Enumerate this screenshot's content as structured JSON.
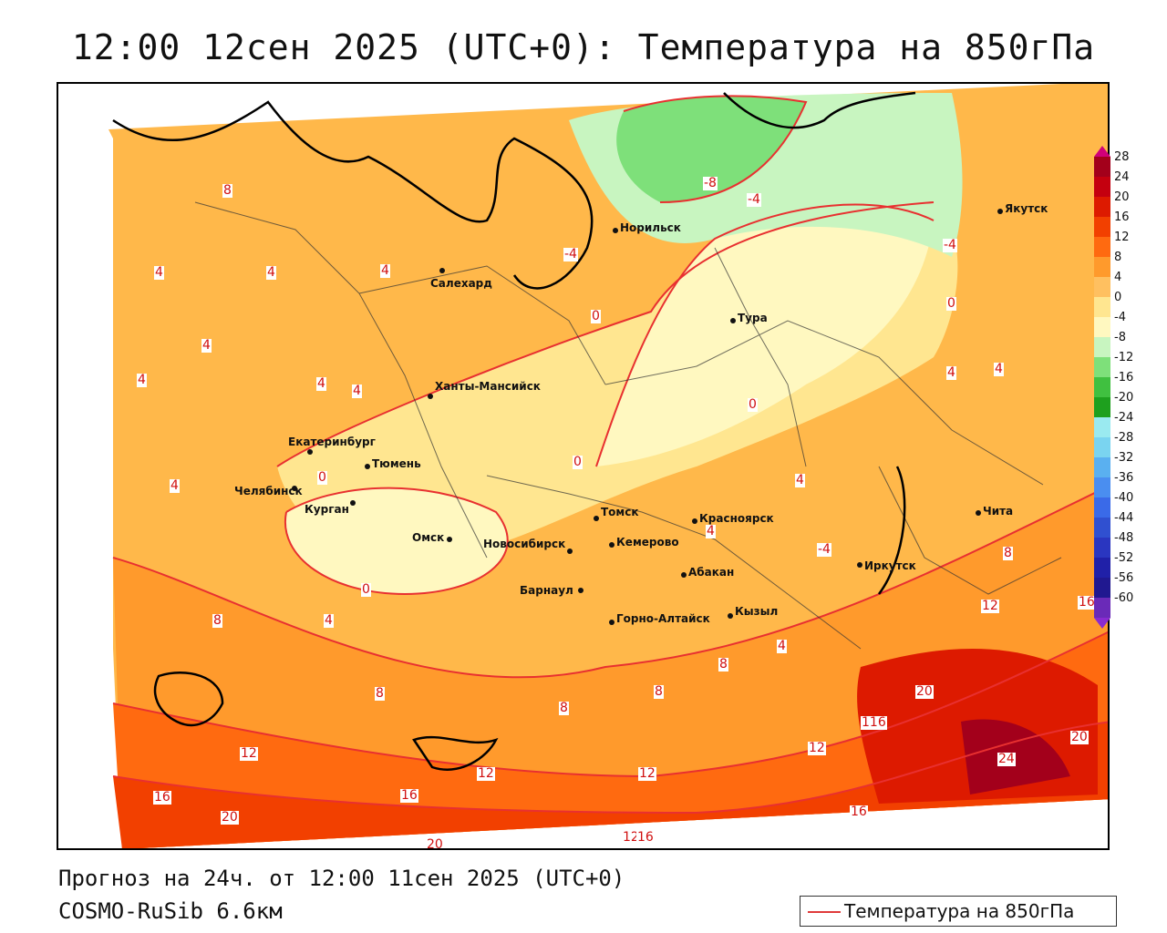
{
  "title": "12:00 12сен 2025 (UTC+0): Температура на 850гПа",
  "footer": {
    "forecast": "Прогноз на 24ч. от 12:00 11сен 2025 (UTC+0)",
    "model": "COSMO-RuSib 6.6км"
  },
  "legend": {
    "label": "Температура на 850гПа",
    "line_color": "#e03a3a"
  },
  "colorbar": {
    "ticks": [
      "28",
      "24",
      "20",
      "16",
      "12",
      "8",
      "4",
      "0",
      "-4",
      "-8",
      "-12",
      "-16",
      "-20",
      "-24",
      "-28",
      "-32",
      "-36",
      "-40",
      "-44",
      "-48",
      "-52",
      "-56",
      "-60"
    ],
    "colors": [
      "#a3001b",
      "#c4000f",
      "#dd1a00",
      "#f24000",
      "#ff6a10",
      "#ff9a2c",
      "#ffc060",
      "#ffe690",
      "#fff8c0",
      "#c8f5c0",
      "#7ee07a",
      "#40c040",
      "#1ea01e",
      "#9aeaf0",
      "#7ad4f0",
      "#5ab0f0",
      "#4a8ef0",
      "#3a6ae8",
      "#3050d0",
      "#2a36c0",
      "#2020a8",
      "#201890",
      "#6a2ab8"
    ]
  },
  "cities": [
    {
      "name": "Якутск"
    },
    {
      "name": "Норильск"
    },
    {
      "name": "Салехард"
    },
    {
      "name": "Тура"
    },
    {
      "name": "Ханты-Мансийск"
    },
    {
      "name": "Екатеринбург"
    },
    {
      "name": "Тюмень"
    },
    {
      "name": "Челябинск"
    },
    {
      "name": "Курган"
    },
    {
      "name": "Омск"
    },
    {
      "name": "Новосибирск"
    },
    {
      "name": "Томск"
    },
    {
      "name": "Красноярск"
    },
    {
      "name": "Кемерово"
    },
    {
      "name": "Барнаул"
    },
    {
      "name": "Абакан"
    },
    {
      "name": "Иркутск"
    },
    {
      "name": "Чита"
    },
    {
      "name": "Горно-Алтайск"
    },
    {
      "name": "Кызыл"
    }
  ],
  "contour_labels": [
    "8",
    "4",
    "4",
    "4",
    "4",
    "4",
    "4",
    "4",
    "0",
    "0",
    "0",
    "0",
    "0",
    "-4",
    "-4",
    "-4",
    "-8",
    "0",
    "4",
    "4",
    "4",
    "4",
    "8",
    "8",
    "8",
    "8",
    "8",
    "12",
    "12",
    "12",
    "12",
    "12",
    "16",
    "16",
    "16",
    "16",
    "20",
    "20",
    "20",
    "20",
    "24",
    "116",
    "-4",
    "4",
    "4",
    "4",
    "8",
    "12",
    "16"
  ]
}
